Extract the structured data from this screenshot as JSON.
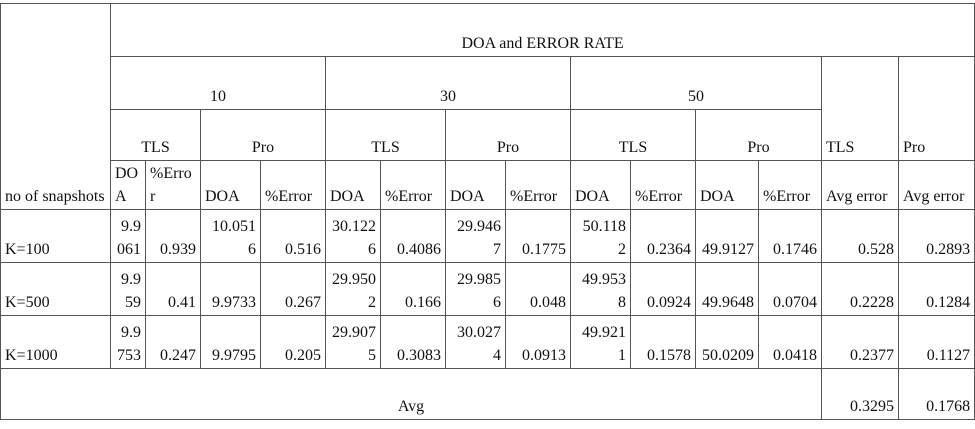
{
  "table": {
    "title": "DOA and ERROR RATE",
    "corner": "no of snapshots",
    "snapshot_groups": [
      "10",
      "30",
      "50"
    ],
    "methods": [
      "TLS",
      "Pro",
      "TLS",
      "Pro",
      "TLS",
      "Pro"
    ],
    "columns": [
      "DOA",
      "%Error",
      "DOA",
      "%Error",
      "DOA",
      "%Error",
      "DOA",
      "%Error",
      "DOA",
      "%Error",
      "DOA",
      "%Error"
    ],
    "avg_methods": [
      "TLS",
      "Pro"
    ],
    "avg_columns": [
      "Avg error",
      "Avg error"
    ],
    "rows": [
      {
        "label": "K=100",
        "cells": [
          "9.9061",
          "0.939",
          "10.0516",
          "0.516",
          "30.1226",
          "0.4086",
          "29.9467",
          "0.1775",
          "50.1182",
          "0.2364",
          "49.9127",
          "0.1746",
          "0.528",
          "0.2893"
        ]
      },
      {
        "label": "K=500",
        "cells": [
          "9.959",
          "0.41",
          "9.9733",
          "0.267",
          "29.9502",
          "0.166",
          "29.9856",
          "0.048",
          "49.9538",
          "0.0924",
          "49.9648",
          "0.0704",
          "0.2228",
          "0.1284"
        ]
      },
      {
        "label": "K=1000",
        "cells": [
          "9.9753",
          "0.247",
          "9.9795",
          "0.205",
          "29.9075",
          "0.3083",
          "30.0274",
          "0.0913",
          "49.9211",
          "0.1578",
          "50.0209",
          "0.0418",
          "0.2377",
          "0.1127"
        ]
      }
    ],
    "footer": {
      "label": "Avg",
      "values": [
        "0.3295",
        "0.1768"
      ]
    }
  }
}
